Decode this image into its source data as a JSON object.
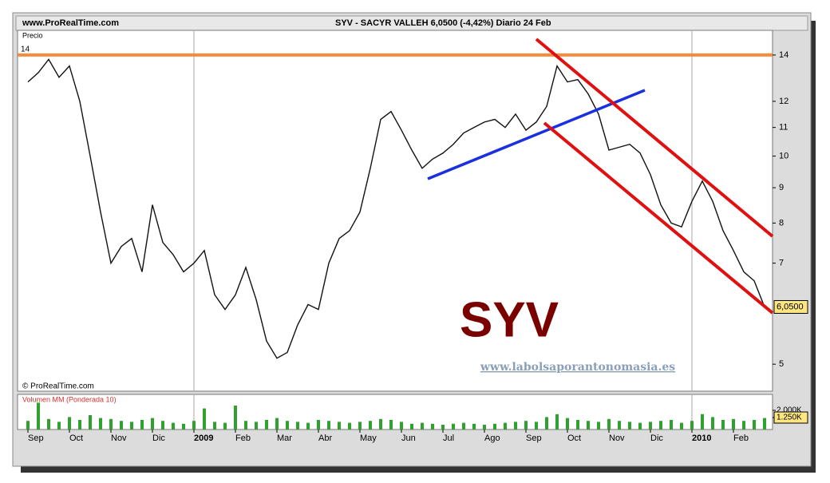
{
  "chart_data": {
    "type": "line",
    "site": "www.ProRealTime.com",
    "title": "SYV - SACYR VALLEH   6,0500 (-4,42%)   Diario  24 Feb",
    "y_label": "Precio",
    "copyright": "© ProRealTime.com",
    "watermark": "SYV",
    "url": "www.labolsaporantonomasia.es",
    "log_scale": true,
    "categories": [
      "Sep",
      null,
      null,
      null,
      "Oct",
      null,
      null,
      null,
      "Nov",
      null,
      null,
      null,
      "Dic",
      null,
      null,
      null,
      "2009",
      null,
      null,
      null,
      "Feb",
      null,
      null,
      null,
      "Mar",
      null,
      null,
      null,
      "Abr",
      null,
      null,
      null,
      "May",
      null,
      null,
      null,
      "Jun",
      null,
      null,
      null,
      "Jul",
      null,
      null,
      null,
      "Ago",
      null,
      null,
      null,
      "Sep",
      null,
      null,
      null,
      "Oct",
      null,
      null,
      null,
      "Nov",
      null,
      null,
      null,
      "Dic",
      null,
      null,
      null,
      "2010",
      null,
      null,
      null,
      "Feb",
      null,
      null,
      null
    ],
    "series": [
      {
        "name": "SYV",
        "color": "#111111",
        "values": [
          12.8,
          13.2,
          13.8,
          13.0,
          13.5,
          12.0,
          10.0,
          8.3,
          7.0,
          7.4,
          7.6,
          6.8,
          8.5,
          7.5,
          7.2,
          6.8,
          7.0,
          7.3,
          6.3,
          6.0,
          6.3,
          6.9,
          6.2,
          5.4,
          5.1,
          5.2,
          5.7,
          6.1,
          6.0,
          7.0,
          7.6,
          7.8,
          8.3,
          9.6,
          11.3,
          11.6,
          10.9,
          10.2,
          9.6,
          9.9,
          10.1,
          10.4,
          10.8,
          11.0,
          11.2,
          11.3,
          11.0,
          11.5,
          10.9,
          11.2,
          11.8,
          13.5,
          12.8,
          12.9,
          12.3,
          11.5,
          10.2,
          10.3,
          10.4,
          10.1,
          9.4,
          8.5,
          8.0,
          7.9,
          8.6,
          9.2,
          8.6,
          7.8,
          7.3,
          6.8,
          6.6,
          6.05
        ]
      }
    ],
    "last_value": {
      "value": 6.05,
      "label": "6,0500"
    },
    "reference_line": {
      "value": 14,
      "color": "#f58b3c"
    },
    "ylim": [
      4.57,
      15.2
    ],
    "yticks": [
      5,
      7,
      8,
      9,
      10,
      11,
      12,
      14
    ],
    "volume": {
      "title": "Volumen MM (Ponderada 10)",
      "color": "#2fa12f",
      "values": [
        900,
        2800,
        1100,
        800,
        1300,
        1000,
        1500,
        1200,
        1100,
        900,
        800,
        1000,
        1200,
        900,
        700,
        600,
        900,
        2200,
        800,
        700,
        2500,
        900,
        800,
        1000,
        1200,
        900,
        800,
        700,
        1000,
        900,
        800,
        700,
        800,
        900,
        1100,
        1000,
        800,
        600,
        700,
        600,
        500,
        600,
        700,
        600,
        500,
        600,
        700,
        800,
        900,
        800,
        1300,
        1600,
        1200,
        1000,
        900,
        800,
        1100,
        900,
        800,
        700,
        800,
        900,
        1000,
        700,
        900,
        1600,
        1300,
        1000,
        1100,
        900,
        1000,
        1200
      ],
      "ylim": [
        0,
        3500
      ],
      "yticks": [
        {
          "value": 2000,
          "label": "2.000K"
        },
        {
          "value": 1250,
          "label": "1.250K"
        }
      ]
    }
  }
}
